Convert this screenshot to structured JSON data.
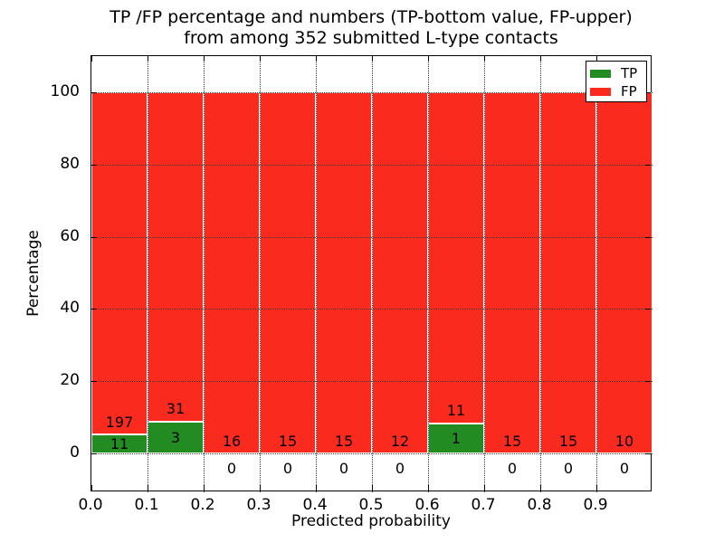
{
  "title": {
    "line1": "TP /FP percentage and numbers (TP-bottom value, FP-upper)",
    "line2": "from among 352 submitted L-type contacts"
  },
  "axes": {
    "xlabel": "Predicted probability",
    "ylabel": "Percentage",
    "x_tick_labels": [
      "0.0",
      "0.1",
      "0.2",
      "0.3",
      "0.4",
      "0.5",
      "0.6",
      "0.7",
      "0.8",
      "0.9"
    ],
    "y_tick_values": [
      0,
      20,
      40,
      60,
      80,
      100
    ],
    "x_range": [
      0.0,
      1.0
    ],
    "y_display_range": [
      -10.8,
      110.0
    ],
    "grid_style": "dotted"
  },
  "legend": {
    "position": "upper-right",
    "entries": [
      {
        "label": "TP",
        "color": "#228b22"
      },
      {
        "label": "FP",
        "color": "#fa2a1f"
      }
    ]
  },
  "colors": {
    "tp_green": "#228b22",
    "fp_red": "#fa2a1f",
    "bar_edge": "#ffffff",
    "grid": "#3a3a3a"
  },
  "chart_data": {
    "type": "bar",
    "subtype": "stacked-percentage-histogram",
    "title": "TP /FP percentage and numbers (TP-bottom value, FP-upper) from among 352 submitted L-type contacts",
    "xlabel": "Predicted probability",
    "ylabel": "Percentage",
    "bin_edges": [
      0.0,
      0.1,
      0.2,
      0.3,
      0.4,
      0.5,
      0.6,
      0.7,
      0.8,
      0.9,
      1.0
    ],
    "stack_total_percent": 100,
    "series": [
      {
        "name": "TP",
        "color": "#228b22",
        "counts": [
          11,
          3,
          0,
          0,
          0,
          0,
          1,
          0,
          0,
          0
        ]
      },
      {
        "name": "FP",
        "color": "#fa2a1f",
        "counts": [
          197,
          31,
          16,
          15,
          15,
          12,
          11,
          15,
          15,
          10
        ]
      }
    ],
    "total_contacts": 352,
    "ylim": [
      -10.8,
      110.0
    ],
    "grid": "on",
    "legend_position": "upper right"
  }
}
